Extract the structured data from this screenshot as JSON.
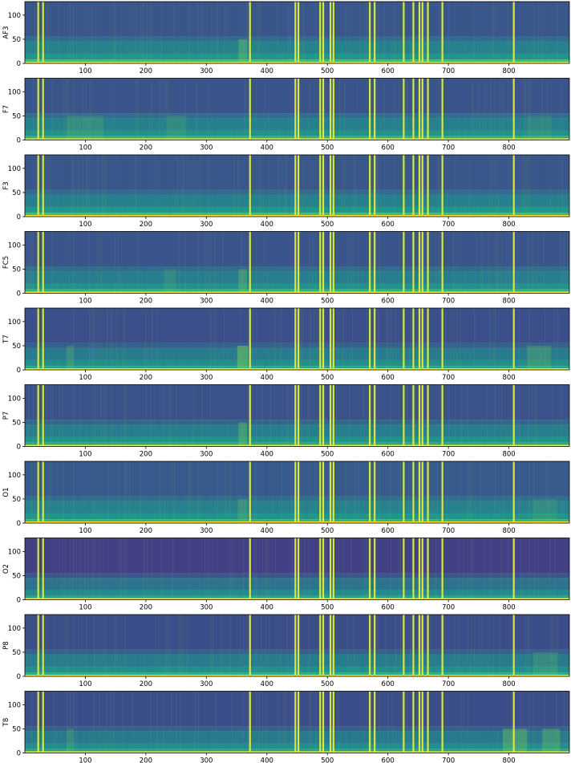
{
  "chart_data": {
    "type": "heatmap",
    "layout": "stacked-subplots",
    "colormap": "viridis",
    "x_ticks": [
      100,
      200,
      300,
      400,
      500,
      600,
      700,
      800
    ],
    "xlim": [
      0,
      900
    ],
    "y_ticks": [
      0,
      50,
      100
    ],
    "ylim": [
      0,
      128
    ],
    "band_edges": [
      0,
      8,
      20,
      45,
      55,
      128
    ],
    "grid": false,
    "artifact_columns": [
      22,
      30,
      372,
      447,
      452,
      488,
      493,
      505,
      510,
      570,
      578,
      626,
      642,
      652,
      657,
      666,
      690,
      808
    ],
    "channels": [
      {
        "label": "AF3",
        "band_levels": [
          0.8,
          0.66,
          0.55,
          0.45,
          0.34
        ],
        "bursts": [
          {
            "x": 360,
            "w": 14,
            "s": 0.12
          }
        ]
      },
      {
        "label": "F7",
        "band_levels": [
          0.78,
          0.64,
          0.54,
          0.46,
          0.33
        ],
        "bursts": [
          {
            "x": 100,
            "w": 60,
            "s": 0.06
          },
          {
            "x": 250,
            "w": 30,
            "s": 0.05
          },
          {
            "x": 850,
            "w": 40,
            "s": 0.04
          }
        ]
      },
      {
        "label": "F3",
        "band_levels": [
          0.8,
          0.66,
          0.54,
          0.44,
          0.34
        ],
        "bursts": []
      },
      {
        "label": "FC5",
        "band_levels": [
          0.78,
          0.64,
          0.53,
          0.44,
          0.33
        ],
        "bursts": [
          {
            "x": 360,
            "w": 14,
            "s": 0.1
          },
          {
            "x": 240,
            "w": 20,
            "s": 0.05
          }
        ]
      },
      {
        "label": "T7",
        "band_levels": [
          0.74,
          0.62,
          0.52,
          0.4,
          0.31
        ],
        "bursts": [
          {
            "x": 360,
            "w": 18,
            "s": 0.16
          },
          {
            "x": 75,
            "w": 12,
            "s": 0.07
          },
          {
            "x": 850,
            "w": 40,
            "s": 0.08
          }
        ]
      },
      {
        "label": "P7",
        "band_levels": [
          0.76,
          0.64,
          0.53,
          0.42,
          0.32
        ],
        "bursts": [
          {
            "x": 360,
            "w": 14,
            "s": 0.12
          }
        ]
      },
      {
        "label": "O1",
        "band_levels": [
          0.78,
          0.65,
          0.55,
          0.46,
          0.36
        ],
        "bursts": [
          {
            "x": 360,
            "w": 16,
            "s": 0.08
          },
          {
            "x": 860,
            "w": 40,
            "s": 0.05
          }
        ]
      },
      {
        "label": "O2",
        "band_levels": [
          0.74,
          0.6,
          0.48,
          0.34,
          0.24
        ],
        "bursts": []
      },
      {
        "label": "P8",
        "band_levels": [
          0.76,
          0.63,
          0.52,
          0.4,
          0.3
        ],
        "bursts": [
          {
            "x": 860,
            "w": 40,
            "s": 0.06
          }
        ]
      },
      {
        "label": "T8",
        "band_levels": [
          0.74,
          0.62,
          0.51,
          0.4,
          0.3
        ],
        "bursts": [
          {
            "x": 810,
            "w": 40,
            "s": 0.12
          },
          {
            "x": 870,
            "w": 30,
            "s": 0.1
          },
          {
            "x": 75,
            "w": 12,
            "s": 0.06
          }
        ]
      }
    ]
  }
}
